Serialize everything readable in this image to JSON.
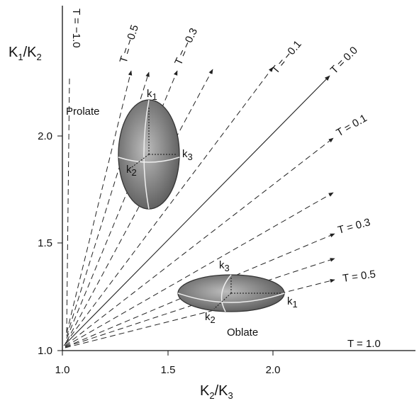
{
  "axes": {
    "y_label": {
      "base1": "K",
      "sub1": "1",
      "base2": "/K",
      "sub2": "2"
    },
    "x_label": {
      "base1": "K",
      "sub1": "2",
      "base2": "/K",
      "sub2": "3"
    },
    "xticks": [
      "1.0",
      "1.5",
      "2.0"
    ],
    "yticks": [
      "1.0",
      "1.5",
      "2.0"
    ]
  },
  "shape_labels": {
    "prolate": "Prolate",
    "oblate": "Oblate"
  },
  "prolate_axes": {
    "k1": {
      "base": "k",
      "sub": "1"
    },
    "k2": {
      "base": "k",
      "sub": "2"
    },
    "k3": {
      "base": "k",
      "sub": "3"
    }
  },
  "oblate_axes": {
    "k1": {
      "base": "k",
      "sub": "1"
    },
    "k2": {
      "base": "k",
      "sub": "2"
    },
    "k3": {
      "base": "k",
      "sub": "3"
    }
  },
  "t_labels": [
    "T = −1.0",
    "T = −0.5",
    "T = −0.3",
    "T = −0.1",
    "T = 0.0",
    "T = 0.1",
    "T = 0.3",
    "T = 0.5",
    "T = 1.0"
  ]
}
